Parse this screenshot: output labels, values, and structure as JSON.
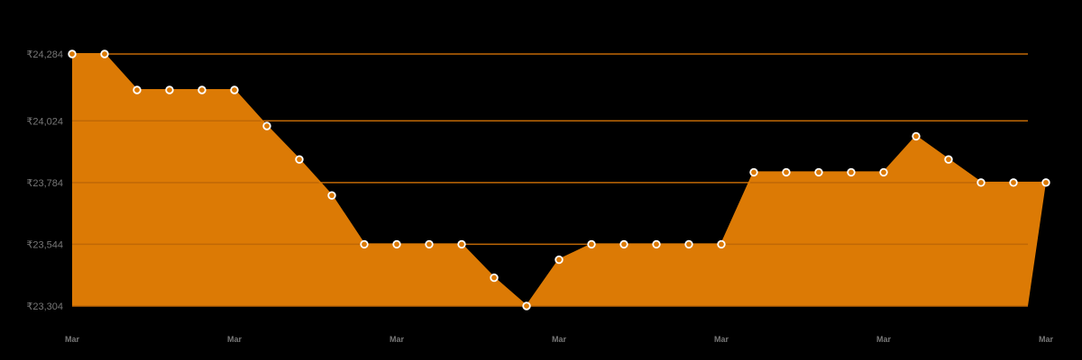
{
  "colors": {
    "background": "#000000",
    "area_fill": "#DC7A05",
    "gridline": "#C06806",
    "point_stroke": "#FFFFFF",
    "point_fill": "#DC7A05",
    "tick_text": "#777777"
  },
  "chart_data": {
    "type": "area",
    "title": "",
    "xlabel": "",
    "ylabel": "",
    "currency_symbol": "₹",
    "y_ticks": [
      "₹24,284",
      "₹24,024",
      "₹23,784",
      "₹23,544",
      "₹23,304"
    ],
    "y_tick_values": [
      24284,
      24024,
      23784,
      23544,
      23304
    ],
    "x_ticks": [
      "Mar",
      "Mar",
      "Mar",
      "Mar",
      "Mar",
      "Mar",
      "Mar"
    ],
    "ylim": [
      23304,
      24284
    ],
    "grid": true,
    "legend": null,
    "x": [
      1,
      2,
      3,
      4,
      5,
      6,
      7,
      8,
      9,
      10,
      11,
      12,
      13,
      14,
      15,
      16,
      17,
      18,
      19,
      20,
      21,
      22,
      23,
      24,
      25,
      26,
      27,
      28,
      29,
      30,
      31
    ],
    "values": [
      24284,
      24284,
      24144,
      24144,
      24144,
      24144,
      24004,
      23874,
      23734,
      23544,
      23544,
      23544,
      23544,
      23414,
      23304,
      23484,
      23544,
      23544,
      23544,
      23544,
      23544,
      23824,
      23824,
      23824,
      23824,
      23824,
      23964,
      23874,
      23784,
      23784,
      23784
    ]
  }
}
